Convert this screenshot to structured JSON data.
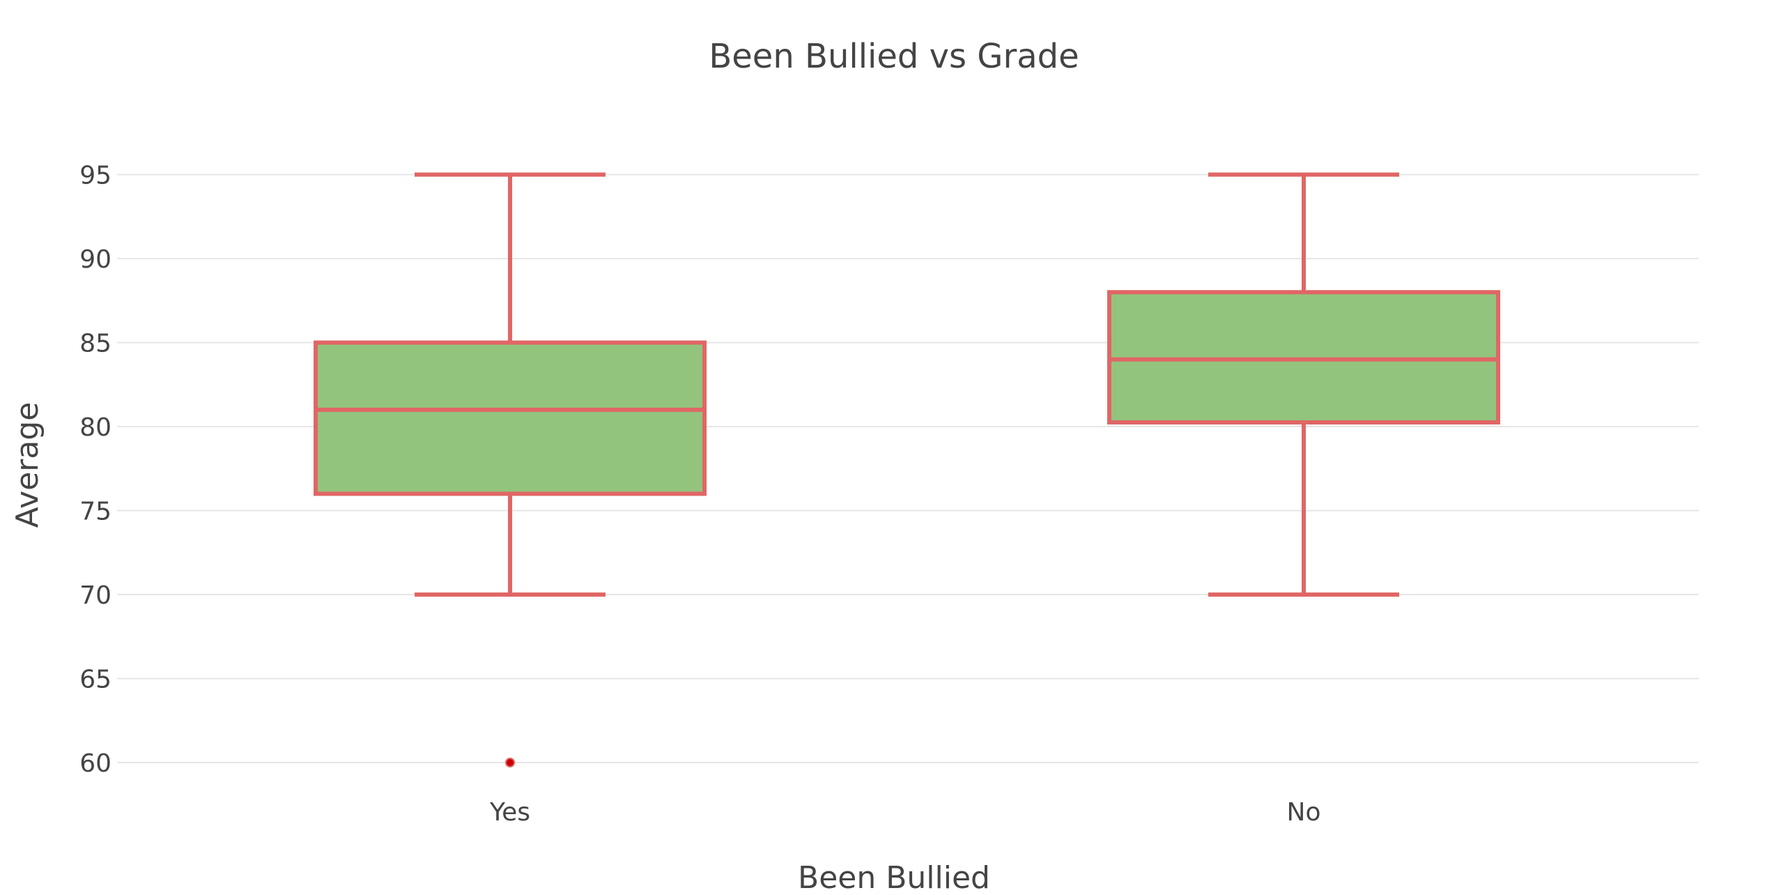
{
  "chart_data": {
    "type": "box",
    "title": "Been Bullied vs Grade",
    "xlabel": "Been Bullied",
    "ylabel": "Average",
    "ylim": [
      57.5,
      97.5
    ],
    "yticks": [
      60,
      65,
      70,
      75,
      80,
      85,
      90,
      95
    ],
    "grid": true,
    "categories": [
      "Yes",
      "No"
    ],
    "boxes": [
      {
        "category": "Yes",
        "min": 70,
        "q1": 76,
        "median": 81,
        "q3": 85,
        "max": 95,
        "outliers": [
          60
        ]
      },
      {
        "category": "No",
        "min": 70,
        "q1": 80.25,
        "median": 84,
        "q3": 88,
        "max": 95,
        "outliers": []
      }
    ],
    "colors": {
      "box_fill": "#93c47d",
      "box_line": "#e06666",
      "outlier": "#cc0000",
      "grid": "#e6e6e6",
      "text": "#444444"
    }
  }
}
